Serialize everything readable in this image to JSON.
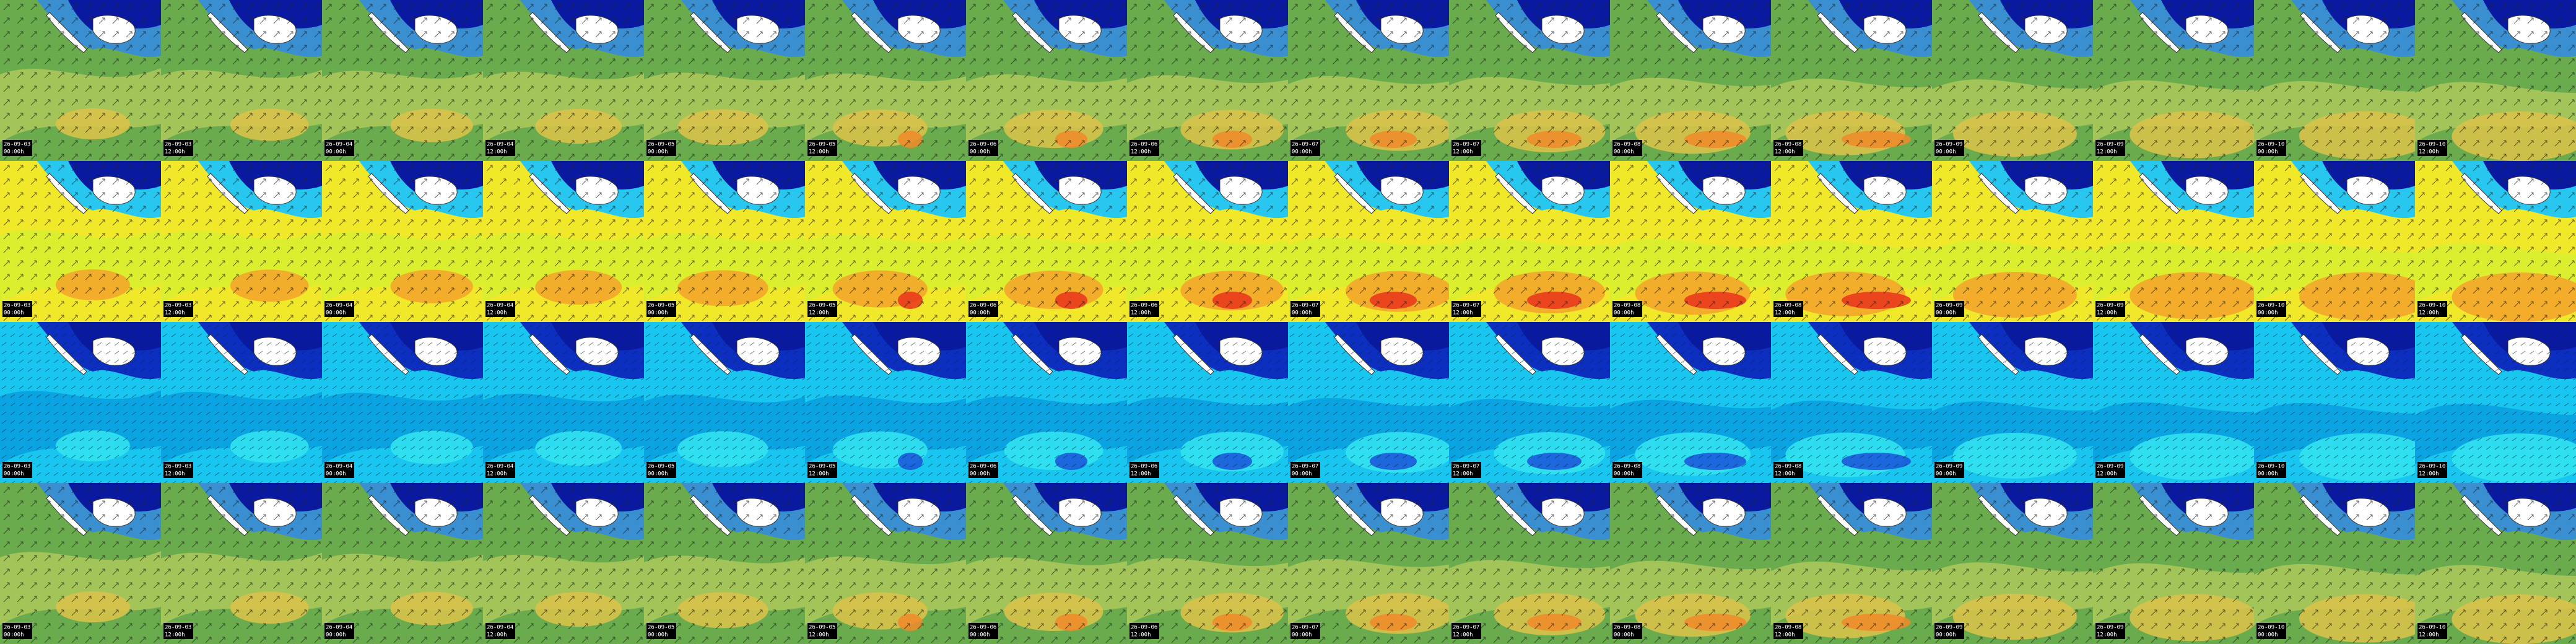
{
  "columns": [
    {
      "date": "26-09-03",
      "time": "00:00h"
    },
    {
      "date": "26-09-03",
      "time": "12:00h"
    },
    {
      "date": "26-09-04",
      "time": "00:00h"
    },
    {
      "date": "26-09-04",
      "time": "12:00h"
    },
    {
      "date": "26-09-05",
      "time": "00:00h"
    },
    {
      "date": "26-09-05",
      "time": "12:00h"
    },
    {
      "date": "26-09-06",
      "time": "00:00h"
    },
    {
      "date": "26-09-06",
      "time": "12:00h"
    },
    {
      "date": "26-09-07",
      "time": "00:00h"
    },
    {
      "date": "26-09-07",
      "time": "12:00h"
    },
    {
      "date": "26-09-08",
      "time": "00:00h"
    },
    {
      "date": "26-09-08",
      "time": "12:00h"
    },
    {
      "date": "26-09-09",
      "time": "00:00h"
    },
    {
      "date": "26-09-09",
      "time": "12:00h"
    },
    {
      "date": "26-09-10",
      "time": "00:00h"
    },
    {
      "date": "26-09-10",
      "time": "12:00h"
    }
  ]
}
